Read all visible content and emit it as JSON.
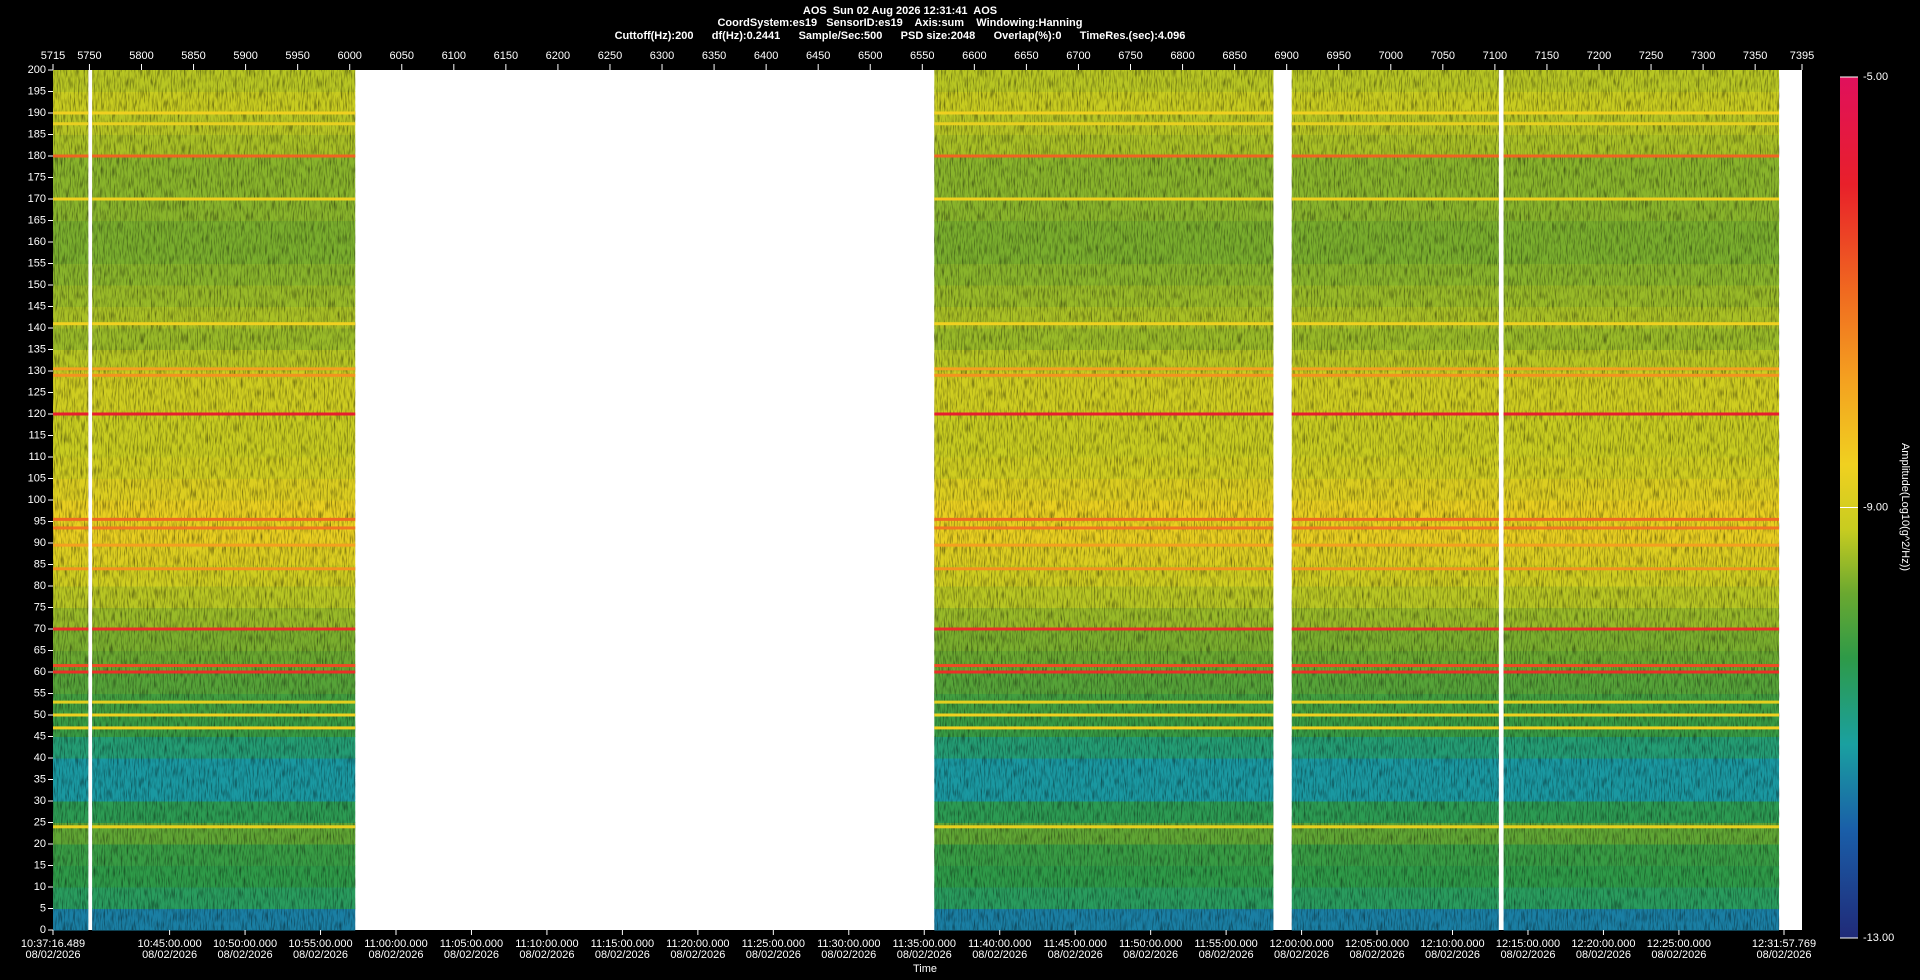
{
  "chart_data": {
    "type": "spectrogram",
    "title_lines": [
      "AOS  Sun 02 Aug 2026 12:31:41  AOS",
      "CoordSystem:es19   SensorID:es19    Axis:sum    Windowing:Hanning",
      "Cuttoff(Hz):200      df(Hz):0.2441      Sample/Sec:500      PSD size:2048      Overlap(%):0      TimeRes.(sec):4.096"
    ],
    "xlabel": "Time",
    "zlabel": "Amplitude(Log10(g^2/Hz))",
    "xlim": [
      5715,
      7395
    ],
    "xticks": [
      5715,
      5750,
      5800,
      5850,
      5900,
      5950,
      6000,
      6050,
      6100,
      6150,
      6200,
      6250,
      6300,
      6350,
      6400,
      6450,
      6500,
      6550,
      6600,
      6650,
      6700,
      6750,
      6800,
      6850,
      6900,
      6950,
      7000,
      7050,
      7100,
      7150,
      7200,
      7250,
      7300,
      7350,
      7395
    ],
    "ylim": [
      0,
      200
    ],
    "yticks": [
      0,
      5,
      10,
      15,
      20,
      25,
      30,
      35,
      40,
      45,
      50,
      55,
      60,
      65,
      70,
      75,
      80,
      85,
      90,
      95,
      100,
      105,
      110,
      115,
      120,
      125,
      130,
      135,
      140,
      145,
      150,
      155,
      160,
      165,
      170,
      175,
      180,
      185,
      190,
      195,
      200
    ],
    "time_ticks": [
      {
        "time": "10:37:16.489",
        "date": "08/02/2026"
      },
      {
        "time": "10:45:00.000",
        "date": "08/02/2026"
      },
      {
        "time": "10:50:00.000",
        "date": "08/02/2026"
      },
      {
        "time": "10:55:00.000",
        "date": "08/02/2026"
      },
      {
        "time": "11:00:00.000",
        "date": "08/02/2026"
      },
      {
        "time": "11:05:00.000",
        "date": "08/02/2026"
      },
      {
        "time": "11:10:00.000",
        "date": "08/02/2026"
      },
      {
        "time": "11:15:00.000",
        "date": "08/02/2026"
      },
      {
        "time": "11:20:00.000",
        "date": "08/02/2026"
      },
      {
        "time": "11:25:00.000",
        "date": "08/02/2026"
      },
      {
        "time": "11:30:00.000",
        "date": "08/02/2026"
      },
      {
        "time": "11:35:00.000",
        "date": "08/02/2026"
      },
      {
        "time": "11:40:00.000",
        "date": "08/02/2026"
      },
      {
        "time": "11:45:00.000",
        "date": "08/02/2026"
      },
      {
        "time": "11:50:00.000",
        "date": "08/02/2026"
      },
      {
        "time": "11:55:00.000",
        "date": "08/02/2026"
      },
      {
        "time": "12:00:00.000",
        "date": "08/02/2026"
      },
      {
        "time": "12:05:00.000",
        "date": "08/02/2026"
      },
      {
        "time": "12:10:00.000",
        "date": "08/02/2026"
      },
      {
        "time": "12:15:00.000",
        "date": "08/02/2026"
      },
      {
        "time": "12:20:00.000",
        "date": "08/02/2026"
      },
      {
        "time": "12:25:00.000",
        "date": "08/02/2026"
      },
      {
        "time": "12:31:57.769",
        "date": "08/02/2026"
      }
    ],
    "zlim": [
      -13,
      -5
    ],
    "zticks": [
      {
        "value": -5,
        "label": "-5.00"
      },
      {
        "value": -9,
        "label": "-9.00"
      },
      {
        "value": -13,
        "label": "-13.00"
      }
    ],
    "colormap": [
      {
        "value": -13,
        "color": "#202a78"
      },
      {
        "value": -12,
        "color": "#1a5ea8"
      },
      {
        "value": -11.2,
        "color": "#1aa0a0"
      },
      {
        "value": -10.4,
        "color": "#2e9a48"
      },
      {
        "value": -9.8,
        "color": "#6aa830"
      },
      {
        "value": -9.2,
        "color": "#c8cc20"
      },
      {
        "value": -8.6,
        "color": "#f0d020"
      },
      {
        "value": -7.8,
        "color": "#f4a020"
      },
      {
        "value": -7,
        "color": "#f06a20"
      },
      {
        "value": -6,
        "color": "#e8202a"
      },
      {
        "value": -5,
        "color": "#e0105c"
      }
    ],
    "segments": [
      {
        "start": "10:37:16.489",
        "end": "10:39:37"
      },
      {
        "start": "10:39:52",
        "end": "10:57:18"
      },
      {
        "start": "11:35:40",
        "end": "11:58:08"
      },
      {
        "start": "11:59:21",
        "end": "12:13:04"
      },
      {
        "start": "12:13:23",
        "end": "12:31:38"
      }
    ],
    "profile": {
      "bins": [
        0,
        5,
        10,
        15,
        20,
        25,
        30,
        35,
        40,
        45,
        50,
        55,
        60,
        65,
        70,
        75,
        80,
        85,
        90,
        95,
        100,
        105,
        110,
        115,
        120,
        125,
        130,
        135,
        140,
        145,
        150,
        155,
        160,
        165,
        170,
        175,
        180,
        185,
        190,
        195,
        200
      ],
      "values": [
        -11.6,
        -10.6,
        -10.4,
        -10.3,
        -9.9,
        -10.5,
        -11.3,
        -11.3,
        -10.8,
        -10.3,
        -10.2,
        -10.0,
        -9.8,
        -9.7,
        -9.5,
        -9.3,
        -9.1,
        -8.9,
        -8.7,
        -8.7,
        -8.9,
        -9.1,
        -9.2,
        -9.2,
        -9.1,
        -9.1,
        -9.3,
        -9.5,
        -9.4,
        -9.5,
        -9.6,
        -9.7,
        -9.7,
        -9.6,
        -9.6,
        -9.6,
        -9.4,
        -9.3,
        -9.2,
        -9.3
      ]
    },
    "lines": {
      "frequencies": [
        24,
        47,
        50,
        53,
        60,
        61.5,
        70,
        84,
        89.5,
        93.5,
        95.5,
        120,
        129,
        130.5,
        141,
        170,
        180,
        187.5,
        190
      ],
      "values": [
        -8.7,
        -8.6,
        -8.6,
        -8.8,
        -6.2,
        -6.6,
        -6.2,
        -7.6,
        -7.8,
        -7.2,
        -7.0,
        -5.9,
        -7.6,
        -7.8,
        -8.6,
        -8.6,
        -6.9,
        -8.7,
        -8.6
      ]
    }
  }
}
